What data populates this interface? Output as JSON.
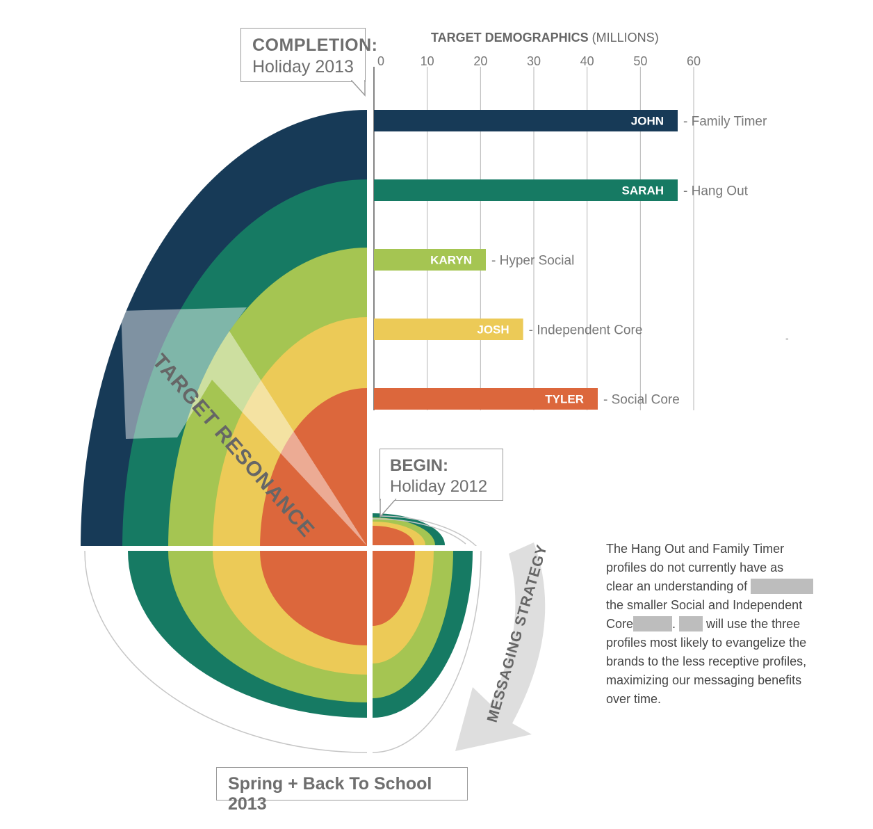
{
  "chart_data": {
    "type": "bar",
    "orientation": "horizontal",
    "title": "TARGET DEMOGRAPHICS",
    "title_unit": "(MILLIONS)",
    "ticks": [
      "0",
      "10",
      "20",
      "30",
      "40",
      "50",
      "60"
    ],
    "xlim": [
      0,
      60
    ],
    "grid": true,
    "bars": [
      {
        "name": "JOHN",
        "profile": "- Family Timer",
        "value": 57,
        "color": "#173a57"
      },
      {
        "name": "SARAH",
        "profile": "- Hang Out",
        "value": 57,
        "color": "#167a63"
      },
      {
        "name": "KARYN",
        "profile": "- Hyper Social",
        "value": 21,
        "color": "#a5c552"
      },
      {
        "name": "JOSH",
        "profile": "- Independent Core",
        "value": 28,
        "color": "#ecca57"
      },
      {
        "name": "TYLER",
        "profile": "- Social Core",
        "value": 42,
        "color": "#dc673c"
      }
    ]
  },
  "diagram": {
    "arrow_label": "TARGET RESONANCE",
    "strategy_label": "MESSAGING  STRATEGY",
    "completion": {
      "bold": "COMPLETION:",
      "sub": "Holiday 2013"
    },
    "begin": {
      "bold": "BEGIN:",
      "sub": "Holiday 2012"
    },
    "spring": "Spring + Back To School 2013"
  },
  "note": {
    "line1": "The Hang Out and Family Timer",
    "line2": "profiles do not currently have as",
    "line3": "clear an understanding of",
    "line4": "the smaller Social and Independent",
    "line5a": "Core",
    "line5b": ".",
    "line5c": " will use the three",
    "line6": "profiles most likely to evangelize the",
    "line7": "brands to the less receptive profiles,",
    "line8": "maximizing our messaging benefits",
    "line9": "over time."
  },
  "stray_mark": "-"
}
